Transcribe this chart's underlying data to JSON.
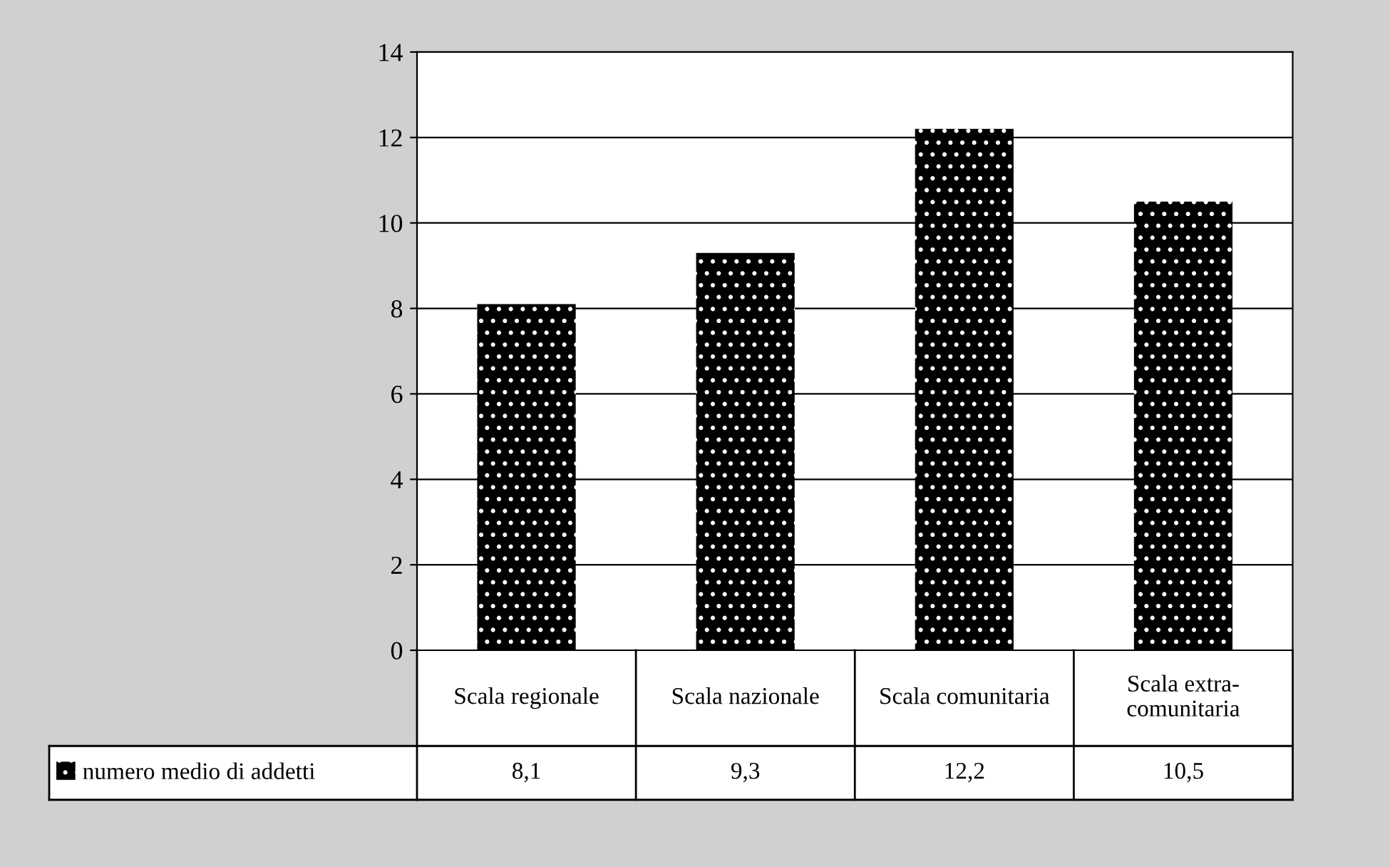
{
  "chart_data": {
    "type": "bar",
    "categories": [
      "Scala regionale",
      "Scala nazionale",
      "Scala comunitaria",
      "Scala extra-comunitaria"
    ],
    "series": [
      {
        "name": "numero medio di addetti",
        "color": "#000000",
        "values": [
          8.1,
          9.3,
          12.2,
          10.5
        ],
        "value_labels": [
          "8,1",
          "9,3",
          "12,2",
          "10,5"
        ]
      }
    ],
    "ylim": [
      0,
      14
    ],
    "yticks": [
      0,
      2,
      4,
      6,
      8,
      10,
      12,
      14
    ],
    "grid": "y",
    "legend": "bottom"
  }
}
